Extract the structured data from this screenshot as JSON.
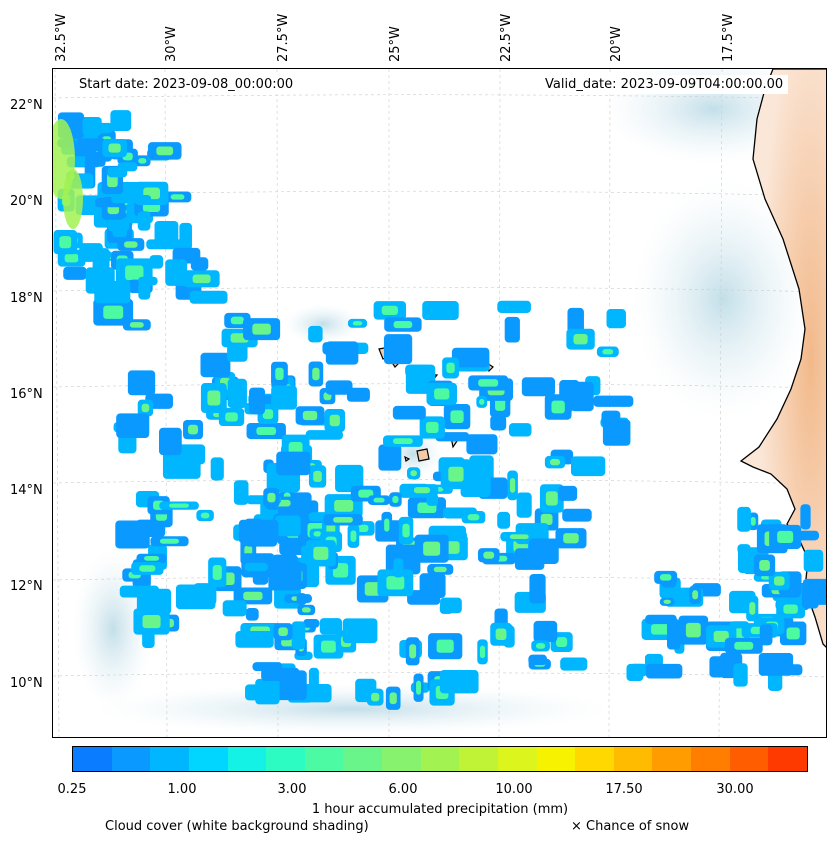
{
  "map": {
    "start_date": "Start date: 2023-09-08_00:00:00",
    "valid_date": "Valid_date: 2023-09-09T04:00:00.00",
    "lon_labels": [
      "32.5°W",
      "30°W",
      "27.5°W",
      "25°W",
      "22.5°W",
      "20°W",
      "17.5°W"
    ],
    "lat_labels": [
      "22°N",
      "20°N",
      "18°N",
      "16°N",
      "14°N",
      "12°N",
      "10°N"
    ],
    "land_color": "#f5cba7",
    "coast_color": "#000000",
    "cloud_color": "#cfe6ee"
  },
  "colorbar": {
    "label": "1 hour accumulated precipitation (mm)",
    "ticks": [
      "0.25",
      "1.00",
      "3.00",
      "6.00",
      "10.00",
      "17.50",
      "30.00"
    ],
    "colors": [
      "#0a7cff",
      "#0a99ff",
      "#00b6ff",
      "#00d6ff",
      "#14f2e6",
      "#2dfcc2",
      "#4cfaa4",
      "#6af58a",
      "#86f26e",
      "#a2f252",
      "#c0f236",
      "#dcf51c",
      "#f7f200",
      "#ffd800",
      "#ffbb00",
      "#ff9c00",
      "#ff7e00",
      "#ff5d00",
      "#ff3a00"
    ]
  },
  "footer": {
    "cloud_note": "Cloud cover (white background shading)",
    "snow_note": "× Chance of snow"
  }
}
